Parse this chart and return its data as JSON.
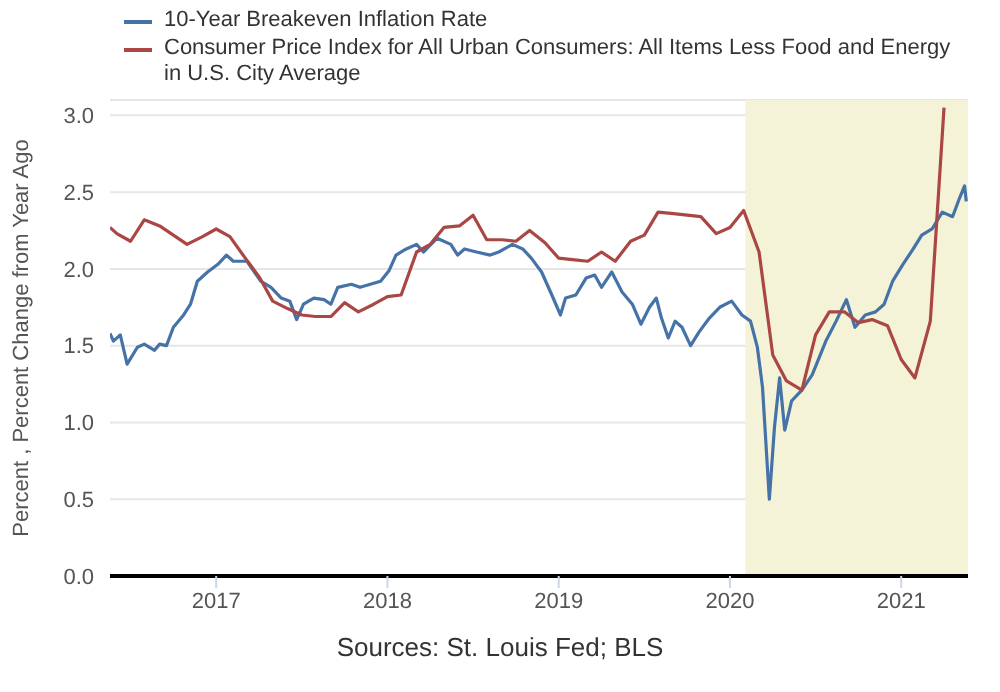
{
  "chart_data": {
    "type": "line",
    "ylabel": "Percent , Percent Change from Year Ago",
    "legend": "top left",
    "grid": "y",
    "line_style": "solid",
    "marker": "none",
    "xlim": [
      2016.38,
      2021.39
    ],
    "xticks": [
      2017,
      2018,
      2019,
      2020,
      2021
    ],
    "ylim": [
      0,
      3.1
    ],
    "yticks": [
      {
        "value": 0,
        "label": "0.0"
      },
      {
        "value": 0.5,
        "label": "0.5"
      },
      {
        "value": 1,
        "label": "1.0"
      },
      {
        "value": 1.5,
        "label": "1.5"
      },
      {
        "value": 2,
        "label": "2.0"
      },
      {
        "value": 2.5,
        "label": "2.5"
      },
      {
        "value": 3,
        "label": "3.0"
      }
    ],
    "bands": [
      {
        "axis": "x",
        "from": 2020.09,
        "to": 2021.39,
        "color": "#f5f3d7"
      }
    ],
    "annotations": [
      "Sources: St. Louis Fed; BLS"
    ],
    "series": [
      {
        "name": "10-Year Breakeven Inflation Rate",
        "color": "#4572a7",
        "x": [
          2016.38,
          2016.4,
          2016.44,
          2016.48,
          2016.54,
          2016.58,
          2016.64,
          2016.67,
          2016.71,
          2016.75,
          2016.81,
          2016.85,
          2016.89,
          2016.95,
          2017.01,
          2017.06,
          2017.1,
          2017.18,
          2017.26,
          2017.32,
          2017.38,
          2017.43,
          2017.47,
          2017.51,
          2017.57,
          2017.63,
          2017.67,
          2017.71,
          2017.79,
          2017.84,
          2017.9,
          2017.96,
          2018.01,
          2018.05,
          2018.11,
          2018.17,
          2018.21,
          2018.29,
          2018.37,
          2018.41,
          2018.45,
          2018.52,
          2018.6,
          2018.65,
          2018.73,
          2018.79,
          2018.84,
          2018.9,
          2018.96,
          2019.01,
          2019.04,
          2019.1,
          2019.16,
          2019.21,
          2019.25,
          2019.31,
          2019.37,
          2019.43,
          2019.48,
          2019.53,
          2019.57,
          2019.6,
          2019.64,
          2019.68,
          2019.72,
          2019.77,
          2019.82,
          2019.88,
          2019.94,
          2020.01,
          2020.07,
          2020.12,
          2020.16,
          2020.19,
          2020.23,
          2020.26,
          2020.29,
          2020.32,
          2020.36,
          2020.42,
          2020.48,
          2020.56,
          2020.62,
          2020.68,
          2020.73,
          2020.79,
          2020.85,
          2020.9,
          2020.95,
          2021.01,
          2021.07,
          2021.12,
          2021.18,
          2021.24,
          2021.3,
          2021.34,
          2021.37,
          2021.38
        ],
        "values": [
          1.58,
          1.53,
          1.57,
          1.38,
          1.49,
          1.51,
          1.47,
          1.51,
          1.5,
          1.62,
          1.7,
          1.77,
          1.92,
          1.98,
          2.03,
          2.09,
          2.05,
          2.05,
          1.92,
          1.88,
          1.81,
          1.79,
          1.67,
          1.77,
          1.81,
          1.8,
          1.77,
          1.88,
          1.9,
          1.88,
          1.9,
          1.92,
          1.99,
          2.09,
          2.13,
          2.16,
          2.11,
          2.2,
          2.16,
          2.09,
          2.13,
          2.11,
          2.09,
          2.11,
          2.16,
          2.13,
          2.07,
          1.98,
          1.83,
          1.7,
          1.81,
          1.83,
          1.94,
          1.96,
          1.88,
          1.98,
          1.85,
          1.77,
          1.64,
          1.75,
          1.81,
          1.68,
          1.55,
          1.66,
          1.62,
          1.5,
          1.59,
          1.68,
          1.75,
          1.79,
          1.7,
          1.66,
          1.49,
          1.23,
          0.5,
          0.97,
          1.29,
          0.95,
          1.14,
          1.21,
          1.31,
          1.53,
          1.66,
          1.8,
          1.62,
          1.7,
          1.72,
          1.77,
          1.92,
          2.03,
          2.13,
          2.22,
          2.26,
          2.37,
          2.34,
          2.46,
          2.54,
          2.44
        ]
      },
      {
        "name": "Consumer Price Index for All Urban Consumers: All Items Less Food and Energy in U.S. City Average",
        "color": "#aa4643",
        "x": [
          2016.38,
          2016.42,
          2016.5,
          2016.58,
          2016.67,
          2016.75,
          2016.83,
          2016.92,
          2017.0,
          2017.08,
          2017.17,
          2017.25,
          2017.33,
          2017.42,
          2017.5,
          2017.58,
          2017.67,
          2017.75,
          2017.83,
          2017.92,
          2018.0,
          2018.08,
          2018.17,
          2018.25,
          2018.33,
          2018.42,
          2018.5,
          2018.58,
          2018.67,
          2018.75,
          2018.83,
          2018.92,
          2019.0,
          2019.08,
          2019.17,
          2019.25,
          2019.33,
          2019.42,
          2019.5,
          2019.58,
          2019.67,
          2019.75,
          2019.83,
          2019.92,
          2020.0,
          2020.08,
          2020.17,
          2020.25,
          2020.33,
          2020.42,
          2020.5,
          2020.58,
          2020.67,
          2020.75,
          2020.83,
          2020.92,
          2021.0,
          2021.08,
          2021.17,
          2021.25
        ],
        "values": [
          2.27,
          2.23,
          2.18,
          2.32,
          2.28,
          2.22,
          2.16,
          2.21,
          2.26,
          2.21,
          2.07,
          1.95,
          1.79,
          1.74,
          1.7,
          1.69,
          1.69,
          1.78,
          1.72,
          1.77,
          1.82,
          1.83,
          2.11,
          2.16,
          2.27,
          2.28,
          2.35,
          2.19,
          2.19,
          2.18,
          2.25,
          2.17,
          2.07,
          2.06,
          2.05,
          2.11,
          2.05,
          2.18,
          2.22,
          2.37,
          2.36,
          2.35,
          2.34,
          2.23,
          2.27,
          2.38,
          2.11,
          1.44,
          1.27,
          1.21,
          1.57,
          1.72,
          1.72,
          1.65,
          1.67,
          1.63,
          1.41,
          1.29,
          1.66,
          3.05
        ]
      }
    ]
  }
}
